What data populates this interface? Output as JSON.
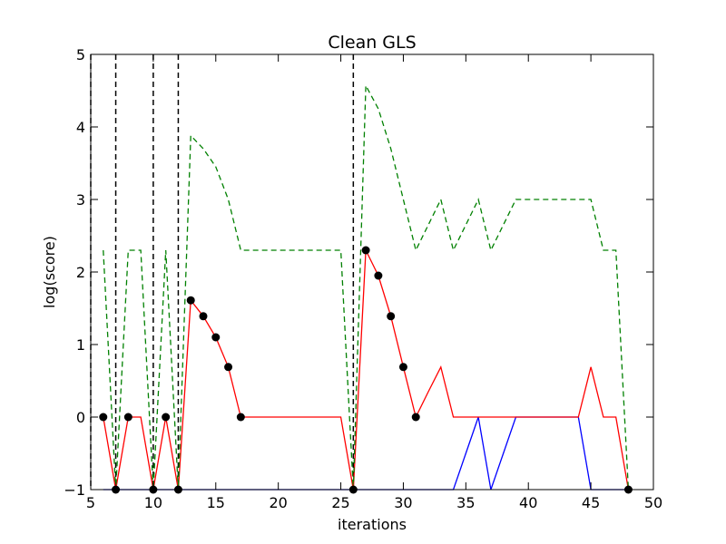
{
  "chart_data": {
    "type": "line",
    "title": "Clean GLS",
    "xlabel": "iterations",
    "ylabel": "log(score)",
    "xlim": [
      5,
      50
    ],
    "ylim": [
      -1,
      5
    ],
    "xticks": [
      "5",
      "10",
      "15",
      "20",
      "25",
      "30",
      "35",
      "40",
      "45",
      "50"
    ],
    "yticks": [
      "−1",
      "0",
      "1",
      "2",
      "3",
      "4",
      "5"
    ],
    "grid": false,
    "legend": "none",
    "series": [
      {
        "color": "#008000",
        "style": "dashed",
        "x": [
          6,
          7,
          8,
          9,
          10,
          11,
          12,
          13,
          14,
          15,
          16,
          17,
          18,
          19,
          20,
          21,
          22,
          23,
          24,
          25,
          26,
          27,
          28,
          29,
          30,
          31,
          32,
          33,
          34,
          35,
          36,
          37,
          38,
          39,
          40,
          41,
          42,
          43,
          44,
          45,
          46,
          47,
          48
        ],
        "y": [
          2.3,
          -1,
          2.3,
          2.3,
          -1,
          2.3,
          -1,
          3.88,
          3.7,
          3.45,
          3.0,
          2.3,
          2.3,
          2.3,
          2.3,
          2.3,
          2.3,
          2.3,
          2.3,
          2.3,
          -1,
          4.57,
          4.25,
          3.7,
          3.0,
          2.3,
          2.65,
          3.0,
          2.3,
          2.65,
          3.0,
          2.3,
          2.65,
          3.0,
          3.0,
          3.0,
          3.0,
          3.0,
          3.0,
          3.0,
          2.3,
          2.3,
          -1
        ]
      },
      {
        "color": "#ff0000",
        "style": "solid",
        "x": [
          6,
          7,
          8,
          9,
          10,
          11,
          12,
          13,
          14,
          15,
          16,
          17,
          18,
          19,
          20,
          21,
          22,
          23,
          24,
          25,
          26,
          27,
          28,
          29,
          30,
          31,
          32,
          33,
          34,
          35,
          36,
          37,
          38,
          39,
          40,
          41,
          42,
          43,
          44,
          45,
          46,
          47,
          48
        ],
        "y": [
          0,
          -1,
          0,
          0,
          -1,
          0,
          -1,
          1.61,
          1.39,
          1.1,
          0.69,
          0,
          0,
          0,
          0,
          0,
          0,
          0,
          0,
          0,
          -1,
          2.3,
          1.95,
          1.39,
          0.69,
          0,
          0.35,
          0.69,
          0,
          0,
          0,
          0,
          0,
          0,
          0,
          0,
          0,
          0,
          0,
          0.69,
          0,
          0,
          -1
        ]
      },
      {
        "color": "#0000ff",
        "style": "solid",
        "x": [
          6,
          34,
          35,
          36,
          37,
          38,
          39,
          40,
          41,
          42,
          43,
          44,
          45,
          46,
          47,
          48
        ],
        "y": [
          -1,
          -1,
          -0.5,
          0,
          -1,
          -0.5,
          0,
          0,
          0,
          0,
          0,
          0,
          -1,
          -1,
          -1,
          -1
        ]
      }
    ],
    "markers": {
      "color": "#000000",
      "x": [
        6,
        7,
        8,
        10,
        11,
        12,
        13,
        14,
        15,
        16,
        17,
        26,
        27,
        28,
        29,
        30,
        31,
        48
      ],
      "y": [
        0,
        -1,
        0,
        -1,
        0,
        -1,
        1.61,
        1.39,
        1.1,
        0.69,
        0,
        -1,
        2.3,
        1.95,
        1.39,
        0.69,
        0,
        -1
      ]
    },
    "vlines": {
      "color": "#000000",
      "style": "dashed",
      "x": [
        5,
        7,
        10,
        12,
        26
      ]
    }
  }
}
